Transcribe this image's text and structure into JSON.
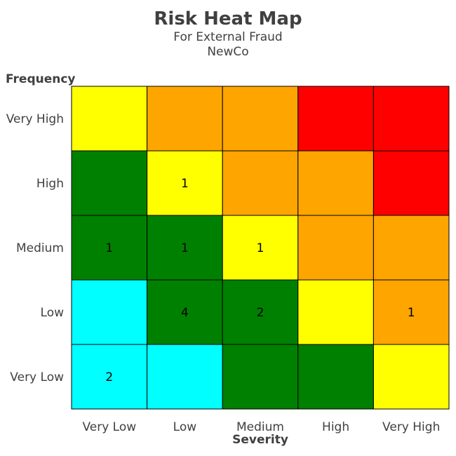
{
  "chart_data": {
    "type": "heatmap",
    "title": "Risk Heat Map",
    "subtitle": [
      "For External Fraud",
      "NewCo"
    ],
    "xlabel": "Severity",
    "ylabel": "Frequency",
    "x_categories": [
      "Very Low",
      "Low",
      "Medium",
      "High",
      "Very High"
    ],
    "y_categories": [
      "Very High",
      "High",
      "Medium",
      "Low",
      "Very Low"
    ],
    "palette": {
      "green": "#008000",
      "yellow": "#ffff00",
      "orange": "#ffa500",
      "red": "#ff0000",
      "cyan": "#00ffff"
    },
    "colors": [
      [
        "yellow",
        "orange",
        "orange",
        "red",
        "red"
      ],
      [
        "green",
        "yellow",
        "orange",
        "orange",
        "red"
      ],
      [
        "green",
        "green",
        "yellow",
        "orange",
        "orange"
      ],
      [
        "cyan",
        "green",
        "green",
        "yellow",
        "orange"
      ],
      [
        "cyan",
        "cyan",
        "green",
        "green",
        "yellow"
      ]
    ],
    "values": [
      [
        "",
        "",
        "",
        "",
        ""
      ],
      [
        "",
        "1",
        "",
        "",
        ""
      ],
      [
        "1",
        "1",
        "1",
        "",
        ""
      ],
      [
        "",
        "4",
        "2",
        "",
        "1"
      ],
      [
        "2",
        "",
        "",
        "",
        ""
      ]
    ],
    "grid": true,
    "legend": "none"
  }
}
